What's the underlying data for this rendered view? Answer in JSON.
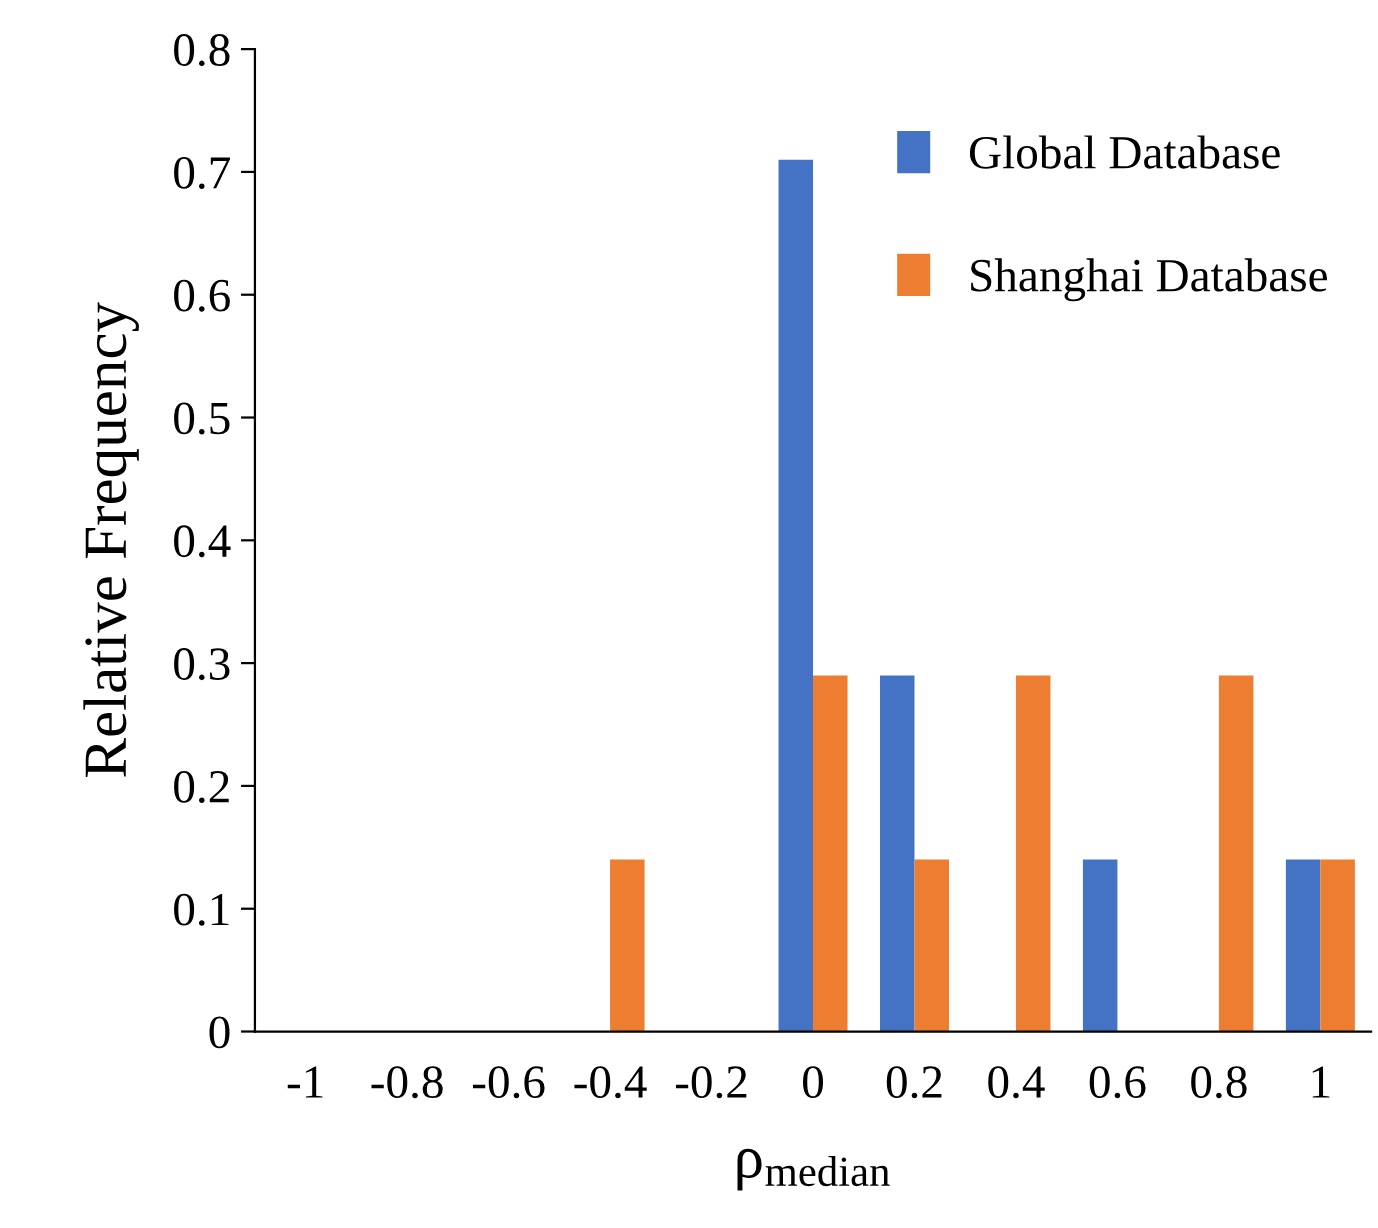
{
  "chart_data": {
    "type": "bar",
    "xlabel": "ρ$_{median}$",
    "ylabel": "Relative Frequency",
    "categories": [
      "-1",
      "-0.8",
      "-0.6",
      "-0.4",
      "-0.2",
      "0",
      "0.2",
      "0.4",
      "0.6",
      "0.8",
      "1"
    ],
    "series": [
      {
        "name": "Global Database",
        "color": "#4472c4",
        "values": [
          0,
          0,
          0,
          0,
          0,
          0.71,
          0.29,
          0,
          0.14,
          0,
          0.14
        ]
      },
      {
        "name": "Shanghai Database",
        "color": "#ed7d31",
        "values": [
          0,
          0,
          0,
          0.14,
          0,
          0.29,
          0.14,
          0.29,
          0,
          0.29,
          0.14
        ]
      }
    ],
    "ylim": [
      0,
      0.8
    ],
    "yticks": [
      0,
      0.1,
      0.2,
      0.3,
      0.4,
      0.5,
      0.6,
      0.7,
      0.8
    ],
    "grid": false,
    "legend": "top right"
  }
}
